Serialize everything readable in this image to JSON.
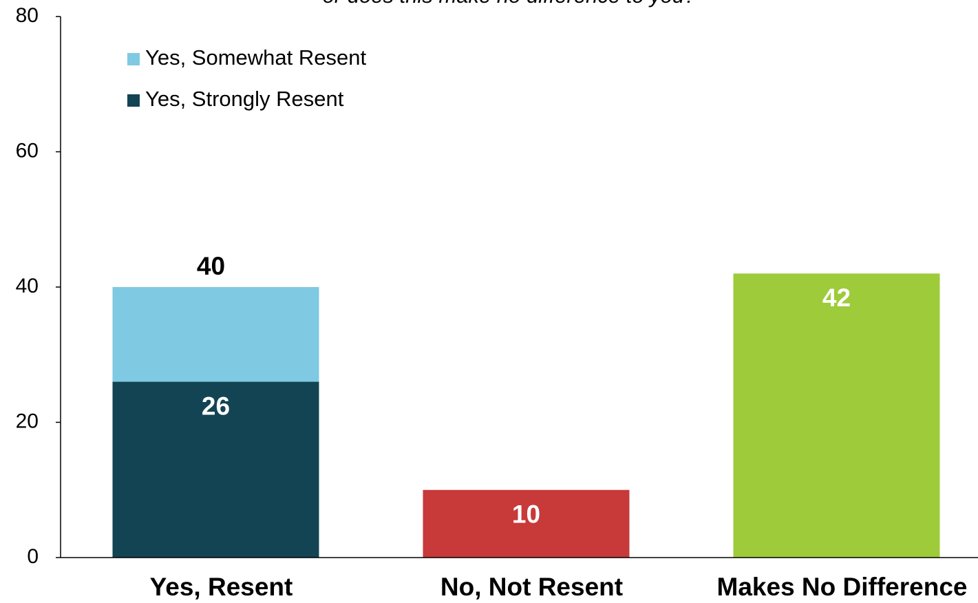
{
  "chart_data": {
    "type": "stacked_bar",
    "subtitle": "or does this make no difference to you?",
    "categories": [
      "Yes, Resent",
      "No, Not Resent",
      "Makes No Difference"
    ],
    "series": [
      {
        "name": "Yes, Strongly Resent",
        "color": "#134453",
        "values": [
          26,
          null,
          null
        ],
        "labels": true
      },
      {
        "name": "Yes, Somewhat Resent",
        "color": "#7fc9e3",
        "values": [
          14,
          null,
          null
        ],
        "labels": false
      }
    ],
    "values": [
      null,
      10,
      42
    ],
    "colors": [
      null,
      "#c8393a",
      "#9ecb3a"
    ],
    "totals": [
      40,
      null,
      null
    ],
    "ylim": [
      0,
      80
    ],
    "yticks": [
      0,
      20,
      40,
      60,
      80
    ],
    "grid": false,
    "legend": "upper left"
  }
}
